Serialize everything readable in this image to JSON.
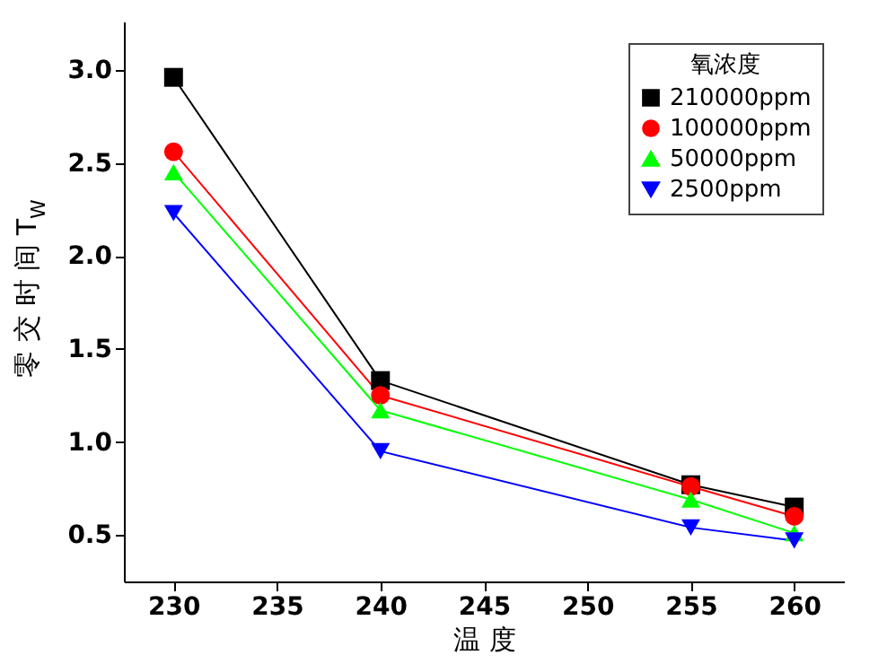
{
  "chart_data": {
    "type": "line",
    "xlabel": "温  度",
    "ylabel": "零 交 时 间 T$_{W}$",
    "legend_title": "氧浓度",
    "x": [
      230,
      240,
      255,
      260
    ],
    "series": [
      {
        "name": "210000ppm",
        "color": "#000000",
        "marker": "square",
        "values": [
          2.96,
          1.33,
          0.77,
          0.65
        ]
      },
      {
        "name": "100000ppm",
        "color": "#ff0000",
        "marker": "circle",
        "values": [
          2.56,
          1.25,
          0.76,
          0.6
        ]
      },
      {
        "name": "50000ppm",
        "color": "#00ff00",
        "marker": "triangle",
        "values": [
          2.45,
          1.17,
          0.69,
          0.51
        ]
      },
      {
        "name": "2500ppm",
        "color": "#0000ff",
        "marker": "triangle-down",
        "values": [
          2.23,
          0.95,
          0.54,
          0.47
        ]
      }
    ],
    "xlim": [
      227.6,
      262.4
    ],
    "xticks": [
      230,
      235,
      240,
      245,
      250,
      255,
      260
    ],
    "ylim": [
      0.25,
      3.26
    ],
    "yticks": [
      0.5,
      {
        "value": 1,
        "label": "1.0"
      },
      1.5,
      {
        "value": 2,
        "label": "2.0"
      },
      2.5,
      {
        "value": 3,
        "label": "3.0"
      }
    ],
    "grid": false,
    "legend": "top right",
    "line_style": "solid"
  }
}
